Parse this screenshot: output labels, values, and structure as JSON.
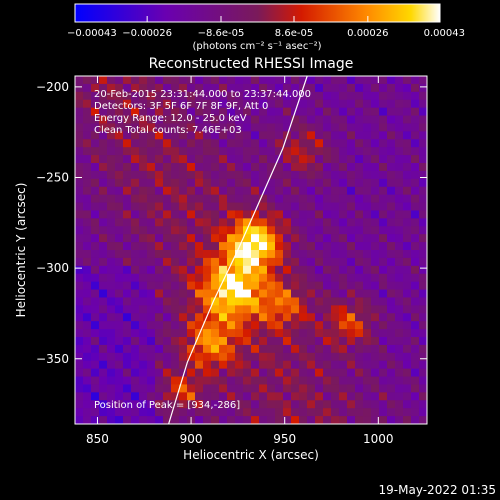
{
  "chart_data": {
    "type": "heatmap",
    "title": "Reconstructed RHESSI Image",
    "xlabel": "Heliocentric X (arcsec)",
    "ylabel": "Heliocentric Y (arcsec)",
    "xlim": [
      838,
      1026
    ],
    "ylim": [
      -386,
      -194
    ],
    "x_ticks": [
      850,
      900,
      950,
      1000
    ],
    "x_tick_labels": [
      "850",
      "900",
      "950",
      "1000"
    ],
    "y_ticks": [
      -200,
      -250,
      -300,
      -350
    ],
    "y_tick_labels": [
      "-200",
      "-250",
      "-300",
      "-350"
    ],
    "colorbar": {
      "range": [
        -0.00043,
        0.00043
      ],
      "tick_values": [
        -0.00043,
        -0.00026,
        -8.6e-05,
        8.6e-05,
        0.00026,
        0.00043
      ],
      "tick_labels": [
        "-0.00043",
        "-0.00026",
        "-8.6e-05",
        "8.6e-05",
        "0.00026",
        "0.00043"
      ],
      "unit_label": "(photons cm⁻² s⁻¹ asec⁻²)"
    },
    "annotations": {
      "time_range": "20-Feb-2015 23:31:44.000 to 23:37:44.000",
      "detectors": "Detectors: 3F 5F 6F 7F 8F 9F, Att 0",
      "energy": "Energy Range: 12.0 - 25.0 keV",
      "clean": "Clean     Total counts: 7.46E+03",
      "peak": "Position of Peak = [934,-286]"
    },
    "peak": {
      "x": 934,
      "y": -286
    },
    "limb_curve": [
      [
        888,
        -386
      ],
      [
        898,
        -352
      ],
      [
        912,
        -318
      ],
      [
        925,
        -290
      ],
      [
        937,
        -262
      ],
      [
        949,
        -234
      ],
      [
        962,
        -194
      ]
    ],
    "emission_sources": [
      {
        "x": 934,
        "y": -286,
        "strength": 1.0,
        "sigma": 10
      },
      {
        "x": 922,
        "y": -312,
        "strength": 0.85,
        "sigma": 12
      },
      {
        "x": 910,
        "y": -342,
        "strength": 0.6,
        "sigma": 10
      },
      {
        "x": 895,
        "y": -368,
        "strength": 0.5,
        "sigma": 8
      },
      {
        "x": 950,
        "y": -320,
        "strength": 0.45,
        "sigma": 9
      },
      {
        "x": 985,
        "y": -330,
        "strength": 0.5,
        "sigma": 9
      },
      {
        "x": 960,
        "y": -235,
        "strength": 0.4,
        "sigma": 10
      }
    ]
  },
  "footer": {
    "date": "19-May-2022 01:35"
  }
}
